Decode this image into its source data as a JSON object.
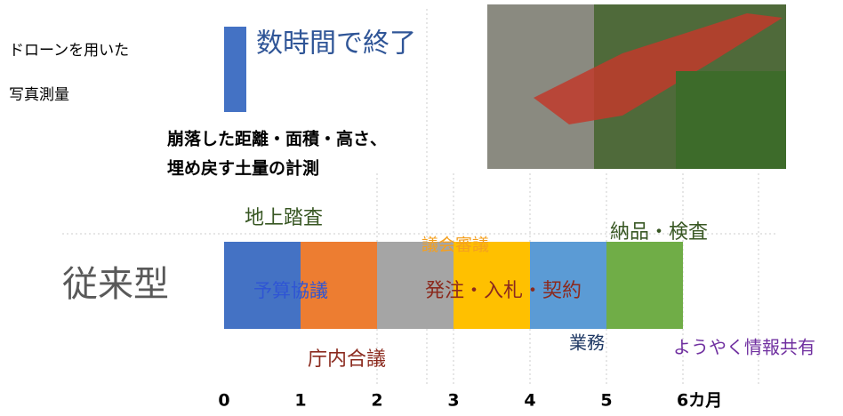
{
  "drone": {
    "label_lines": [
      "ドローンを用いた",
      "写真測量"
    ],
    "result": "数時間で終了",
    "tasks": [
      "崩落した距離・面積・高さ、",
      "埋め戻す土量の計測"
    ]
  },
  "conventional": {
    "label": "従来型",
    "steps": {
      "survey": "地上踏査",
      "assembly": "議会審議",
      "delivery": "納品・検査",
      "budget": "予算協議",
      "order": "発注・入札・契約",
      "work": "業務",
      "finally": "ようやく情報共有",
      "internal": "庁内合議"
    }
  },
  "axis": [
    "0",
    "1",
    "2",
    "3",
    "4",
    "5",
    "6カ月"
  ]
}
